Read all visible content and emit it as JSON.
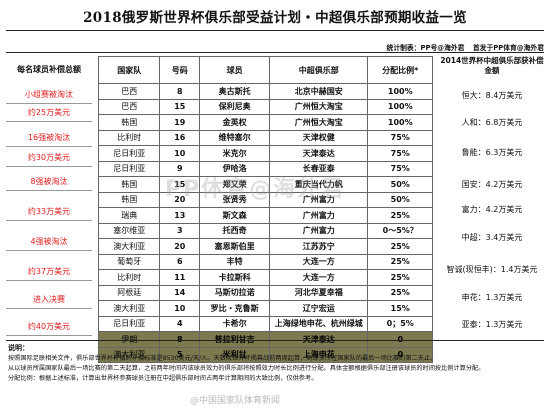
{
  "title": "2018俄罗斯世界杯俱乐部受益计划・中超俱乐部预期收益一览",
  "credit": {
    "stats": "统计制表：PP号@海外君",
    "publish": "首发于PP体育@海外君"
  },
  "left_header": "每名球员补偿总额",
  "left_groups": [
    {
      "stage": "小组赛被淘汰",
      "amount": "约25万美元"
    },
    {
      "stage": "16强被淘汰",
      "amount": "约30万美元"
    },
    {
      "stage": "8强被淘汰",
      "amount": "约33万美元"
    },
    {
      "stage": "4强被淘汰",
      "amount": "约37万美元"
    },
    {
      "stage": "进入决赛",
      "amount": "约40万美元"
    }
  ],
  "columns": [
    "国家队",
    "号码",
    "球员",
    "中超俱乐部",
    "分配比例"
  ],
  "col_note": "*",
  "rows": [
    [
      "巴西",
      "8",
      "奥古斯托",
      "北京中赫国安",
      "100%"
    ],
    [
      "巴西",
      "15",
      "保利尼奥",
      "广州恒大淘宝",
      "100%"
    ],
    [
      "韩国",
      "19",
      "金英权",
      "广州恒大淘宝",
      "100%"
    ],
    [
      "比利时",
      "16",
      "维特塞尔",
      "天津权健",
      "75%"
    ],
    [
      "尼日利亚",
      "10",
      "米克尔",
      "天津泰达",
      "75%"
    ],
    [
      "尼日利亚",
      "9",
      "伊哈洛",
      "长春亚泰",
      "75%"
    ],
    [
      "韩国",
      "15",
      "郑又荣",
      "重庆当代力帆",
      "50%"
    ],
    [
      "韩国",
      "20",
      "张贤秀",
      "广州富力",
      "50%"
    ],
    [
      "瑞典",
      "13",
      "斯文森",
      "广州富力",
      "25%"
    ],
    [
      "塞尔维亚",
      "3",
      "托西奇",
      "广州富力",
      "0～5%？"
    ],
    [
      "澳大利亚",
      "20",
      "塞恩斯伯里",
      "江苏苏宁",
      "25%"
    ],
    [
      "葡萄牙",
      "6",
      "丰特",
      "大连一方",
      "25%"
    ],
    [
      "比利时",
      "11",
      "卡拉斯科",
      "大连一方",
      "25%"
    ],
    [
      "阿根廷",
      "14",
      "马斯切拉诺",
      "河北华夏幸福",
      "25%"
    ],
    [
      "澳大利亚",
      "10",
      "罗比・克鲁斯",
      "辽宁宏运",
      "15%"
    ],
    [
      "尼日利亚",
      "4",
      "卡希尔",
      "上海绿地申花、杭州绿城",
      "0；5%"
    ],
    [
      "伊朗",
      "8",
      "普拉利甘吉",
      "天津泰达",
      "0"
    ],
    [
      "澳大利亚",
      "5",
      "米利甘",
      "上海申花",
      "0"
    ]
  ],
  "right_header": "2014世界杯中超俱乐部获补偿金额",
  "right_items": [
    {
      "club": "恒大：",
      "value": "8.4万美元"
    },
    {
      "club": "人和：",
      "value": "6.8万美元"
    },
    {
      "club": "鲁能：",
      "value": "6.3万美元"
    },
    {
      "club": "国安：",
      "value": "4.2万美元"
    },
    {
      "club": "富力：",
      "value": "4.2万美元"
    },
    {
      "club": "中超：",
      "value": "3.4万美元"
    },
    {
      "club": "智诚(现恒丰)：",
      "value": "1.4万美元"
    },
    {
      "club": "申花：",
      "value": "1.3万美元"
    },
    {
      "club": "亚泰：",
      "value": "1.3万美元"
    }
  ],
  "right_box": "2014世界杯中超俱乐部获补偿金额",
  "notes": {
    "label": "说明：",
    "lines": [
      "按照国际足联相关文件，俱乐部世界杯补偿的补偿标准是8530美元/天/人。天数从世界杯揭幕战前两周起算，到球员所在国家队的最后一场比赛的第二天止。",
      "从以球员所属国家队最后一场比赛的第二天起算，之前两年时间内该球员效力的俱乐部将按照效力时长比例进行分配。具体金额根据俱乐部注册该球员的时间按比例计算分配。",
      "分配比例：根据上述标准，计算出世界杯参赛球员注册在中超俱乐部时间占两年计算期间的大致比例，仅供参考。"
    ]
  },
  "watermark": "PP体育@海外君",
  "bottom_mark": "@中国国家队体育新闻",
  "colors": {
    "accent_red": "#e01b1b",
    "highlight_row": "#7d7a50"
  }
}
